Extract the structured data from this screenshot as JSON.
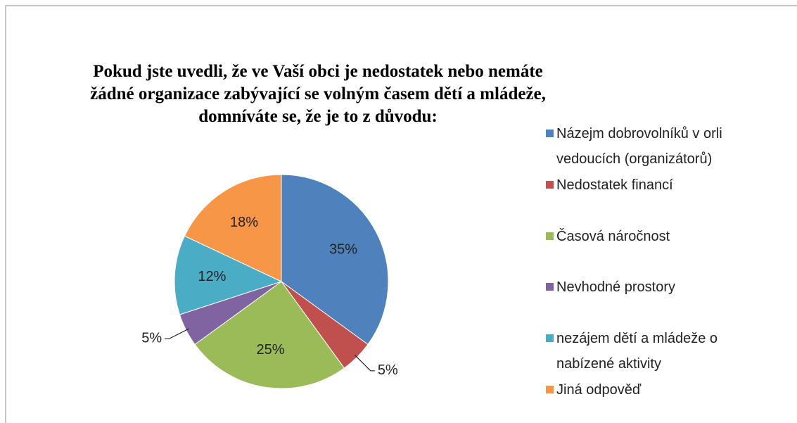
{
  "chart_data": {
    "type": "pie",
    "title": "Pokud jste uvedli, že ve Vaší obci je nedostatek nebo nemáte žádné organizace zabývající se volným časem dětí a mládeže, domníváte se, že je to z důvodu:",
    "categories": [
      "Názejm dobrovolníků v orli vedoucích (organizátorů)",
      "Nedostatek financí",
      "Časová náročnost",
      "Nevhodné prostory",
      "nezájem dětí a mládeže o nabízené aktivity",
      "Jiná odpověď"
    ],
    "values": [
      35,
      5,
      25,
      5,
      12,
      18
    ],
    "value_labels": [
      "35%",
      "5%",
      "25%",
      "5%",
      "12%",
      "18%"
    ],
    "colors": [
      "#4f81bd",
      "#c0504d",
      "#9bbb59",
      "#8064a2",
      "#4bacc6",
      "#f79646"
    ],
    "legend": "right"
  }
}
